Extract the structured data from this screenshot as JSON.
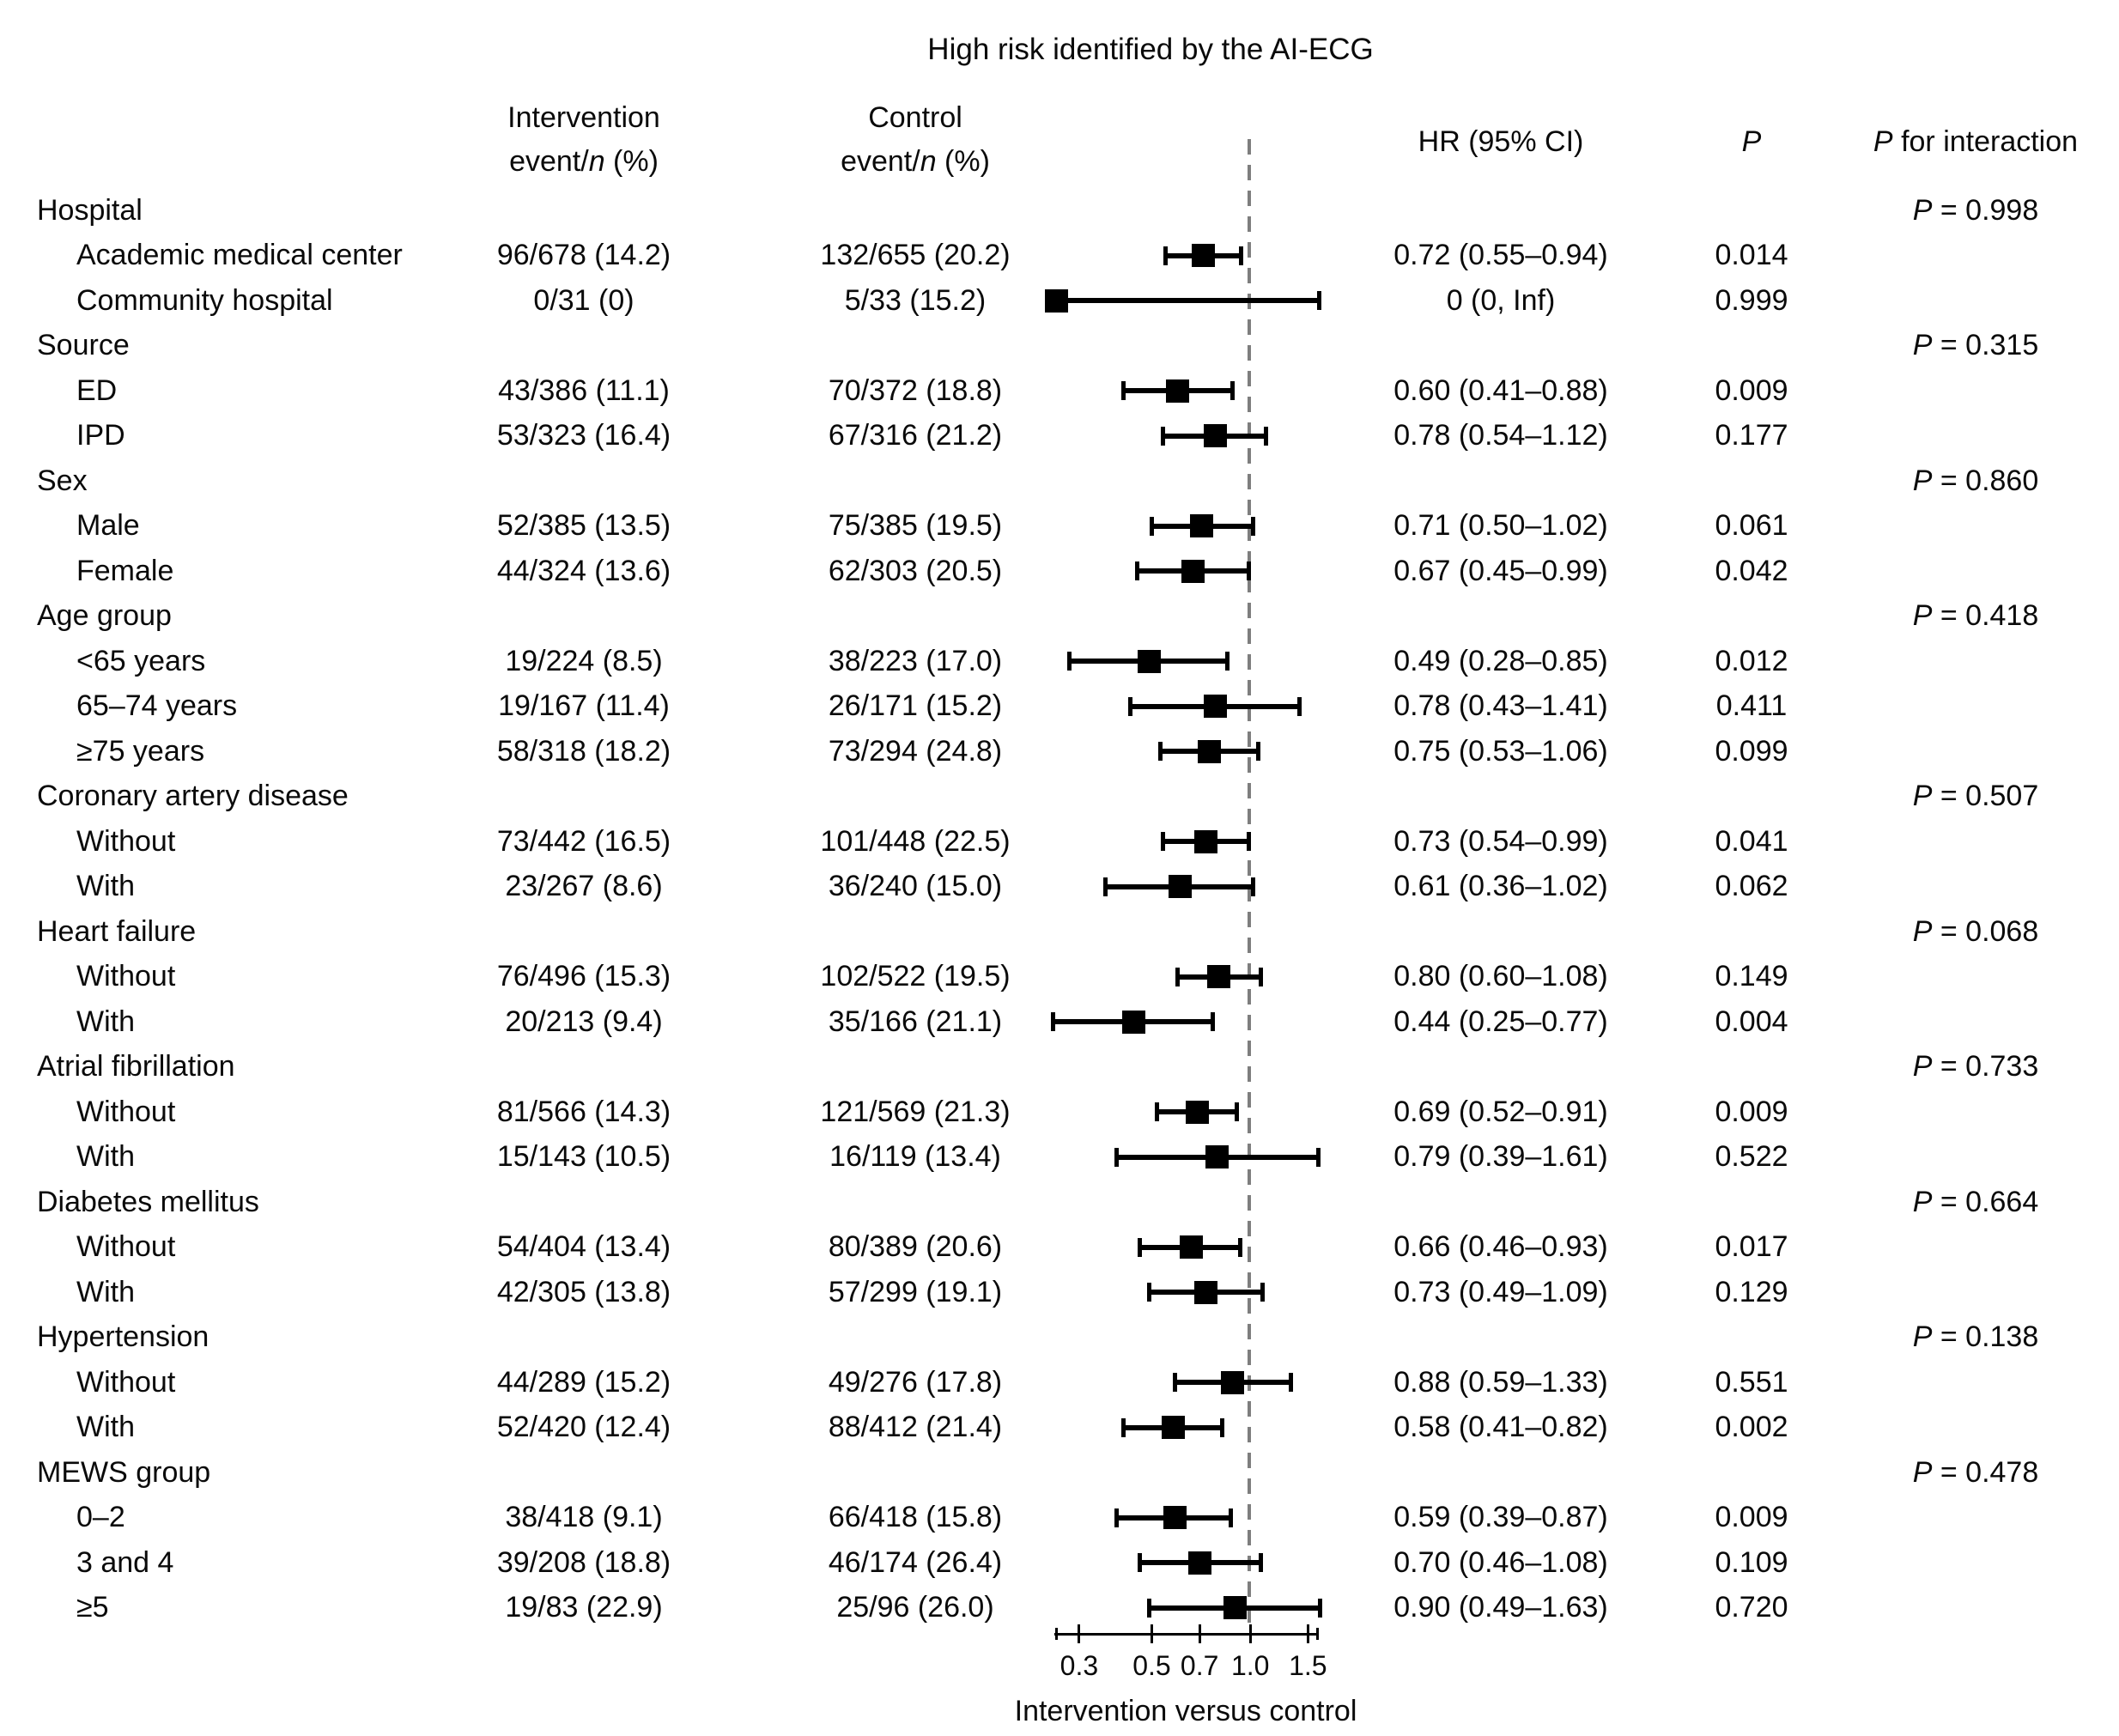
{
  "title": "High risk identified by the AI-ECG",
  "header": {
    "intervention": "Intervention",
    "control": "Control",
    "event_n_pre": "event/",
    "event_n_italic": "n",
    "event_n_post": " (%)",
    "hr": "HR (95% CI)",
    "p": "P",
    "p_interaction_italic": "P",
    "p_interaction_rest": " for interaction"
  },
  "p_prefix": "P",
  "p_equals": " = ",
  "axis": {
    "label": "Intervention versus control",
    "scale": "log",
    "min": 0.255,
    "max": 1.6,
    "reference_line": 1.0,
    "ticks": [
      0.3,
      0.5,
      0.7,
      1.0,
      1.5
    ],
    "tick_labels": [
      "0.3",
      "0.5",
      "0.7",
      "1.0",
      "1.5"
    ]
  },
  "colors": {
    "ink": "#000000",
    "reference_line": "#7e7e7e",
    "background": "#ffffff"
  },
  "chart_data": {
    "type": "scatter",
    "subtype": "forest-plot",
    "title": "High risk identified by the AI-ECG",
    "xlabel": "Intervention versus control",
    "x_scale": "log",
    "x_ticks": [
      0.3,
      0.5,
      0.7,
      1.0,
      1.5
    ],
    "xlim": [
      0.255,
      1.6
    ],
    "reference_x": 1.0,
    "legend": "none",
    "grid": false,
    "groups": [
      {
        "label": "Hospital",
        "p_interaction": "0.998",
        "items": [
          {
            "label": "Academic medical center",
            "intervention": "96/678 (14.2)",
            "control": "132/655 (20.2)",
            "hr_text": "0.72 (0.55–0.94)",
            "hr": 0.72,
            "ci_low": 0.55,
            "ci_high": 0.94,
            "p": "0.014"
          },
          {
            "label": "Community hospital",
            "intervention": "0/31 (0)",
            "control": "5/33 (15.2)",
            "hr_text": "0 (0, Inf)",
            "hr": 0,
            "ci_low": 0,
            "ci_high": null,
            "p": "0.999"
          }
        ]
      },
      {
        "label": "Source",
        "p_interaction": "0.315",
        "items": [
          {
            "label": "ED",
            "intervention": "43/386 (11.1)",
            "control": "70/372 (18.8)",
            "hr_text": "0.60 (0.41–0.88)",
            "hr": 0.6,
            "ci_low": 0.41,
            "ci_high": 0.88,
            "p": "0.009"
          },
          {
            "label": "IPD",
            "intervention": "53/323 (16.4)",
            "control": "67/316 (21.2)",
            "hr_text": "0.78 (0.54–1.12)",
            "hr": 0.78,
            "ci_low": 0.54,
            "ci_high": 1.12,
            "p": "0.177"
          }
        ]
      },
      {
        "label": "Sex",
        "p_interaction": "0.860",
        "items": [
          {
            "label": "Male",
            "intervention": "52/385 (13.5)",
            "control": "75/385 (19.5)",
            "hr_text": "0.71 (0.50–1.02)",
            "hr": 0.71,
            "ci_low": 0.5,
            "ci_high": 1.02,
            "p": "0.061"
          },
          {
            "label": "Female",
            "intervention": "44/324 (13.6)",
            "control": "62/303 (20.5)",
            "hr_text": "0.67 (0.45–0.99)",
            "hr": 0.67,
            "ci_low": 0.45,
            "ci_high": 0.99,
            "p": "0.042"
          }
        ]
      },
      {
        "label": "Age group",
        "p_interaction": "0.418",
        "items": [
          {
            "label": "<65 years",
            "intervention": "19/224 (8.5)",
            "control": "38/223 (17.0)",
            "hr_text": "0.49 (0.28–0.85)",
            "hr": 0.49,
            "ci_low": 0.28,
            "ci_high": 0.85,
            "p": "0.012"
          },
          {
            "label": "65–74 years",
            "intervention": "19/167 (11.4)",
            "control": "26/171 (15.2)",
            "hr_text": "0.78 (0.43–1.41)",
            "hr": 0.78,
            "ci_low": 0.43,
            "ci_high": 1.41,
            "p": "0.411"
          },
          {
            "label": "≥75 years",
            "intervention": "58/318 (18.2)",
            "control": "73/294 (24.8)",
            "hr_text": "0.75 (0.53–1.06)",
            "hr": 0.75,
            "ci_low": 0.53,
            "ci_high": 1.06,
            "p": "0.099"
          }
        ]
      },
      {
        "label": "Coronary artery disease",
        "p_interaction": "0.507",
        "items": [
          {
            "label": "Without",
            "intervention": "73/442 (16.5)",
            "control": "101/448 (22.5)",
            "hr_text": "0.73 (0.54–0.99)",
            "hr": 0.73,
            "ci_low": 0.54,
            "ci_high": 0.99,
            "p": "0.041"
          },
          {
            "label": "With",
            "intervention": "23/267 (8.6)",
            "control": "36/240 (15.0)",
            "hr_text": "0.61 (0.36–1.02)",
            "hr": 0.61,
            "ci_low": 0.36,
            "ci_high": 1.02,
            "p": "0.062"
          }
        ]
      },
      {
        "label": "Heart failure",
        "p_interaction": "0.068",
        "items": [
          {
            "label": "Without",
            "intervention": "76/496 (15.3)",
            "control": "102/522 (19.5)",
            "hr_text": "0.80 (0.60–1.08)",
            "hr": 0.8,
            "ci_low": 0.6,
            "ci_high": 1.08,
            "p": "0.149"
          },
          {
            "label": "With",
            "intervention": "20/213 (9.4)",
            "control": "35/166 (21.1)",
            "hr_text": "0.44 (0.25–0.77)",
            "hr": 0.44,
            "ci_low": 0.25,
            "ci_high": 0.77,
            "p": "0.004"
          }
        ]
      },
      {
        "label": "Atrial fibrillation",
        "p_interaction": "0.733",
        "items": [
          {
            "label": "Without",
            "intervention": "81/566 (14.3)",
            "control": "121/569 (21.3)",
            "hr_text": "0.69 (0.52–0.91)",
            "hr": 0.69,
            "ci_low": 0.52,
            "ci_high": 0.91,
            "p": "0.009"
          },
          {
            "label": "With",
            "intervention": "15/143 (10.5)",
            "control": "16/119 (13.4)",
            "hr_text": "0.79 (0.39–1.61)",
            "hr": 0.79,
            "ci_low": 0.39,
            "ci_high": 1.61,
            "p": "0.522"
          }
        ]
      },
      {
        "label": "Diabetes mellitus",
        "p_interaction": "0.664",
        "items": [
          {
            "label": "Without",
            "intervention": "54/404 (13.4)",
            "control": "80/389 (20.6)",
            "hr_text": "0.66 (0.46–0.93)",
            "hr": 0.66,
            "ci_low": 0.46,
            "ci_high": 0.93,
            "p": "0.017"
          },
          {
            "label": "With",
            "intervention": "42/305 (13.8)",
            "control": "57/299 (19.1)",
            "hr_text": "0.73 (0.49–1.09)",
            "hr": 0.73,
            "ci_low": 0.49,
            "ci_high": 1.09,
            "p": "0.129"
          }
        ]
      },
      {
        "label": "Hypertension",
        "p_interaction": "0.138",
        "items": [
          {
            "label": "Without",
            "intervention": "44/289 (15.2)",
            "control": "49/276 (17.8)",
            "hr_text": "0.88 (0.59–1.33)",
            "hr": 0.88,
            "ci_low": 0.59,
            "ci_high": 1.33,
            "p": "0.551"
          },
          {
            "label": "With",
            "intervention": "52/420 (12.4)",
            "control": "88/412 (21.4)",
            "hr_text": "0.58 (0.41–0.82)",
            "hr": 0.58,
            "ci_low": 0.41,
            "ci_high": 0.82,
            "p": "0.002"
          }
        ]
      },
      {
        "label": "MEWS group",
        "p_interaction": "0.478",
        "items": [
          {
            "label": "0–2",
            "intervention": "38/418 (9.1)",
            "control": "66/418 (15.8)",
            "hr_text": "0.59 (0.39–0.87)",
            "hr": 0.59,
            "ci_low": 0.39,
            "ci_high": 0.87,
            "p": "0.009"
          },
          {
            "label": "3 and 4",
            "intervention": "39/208 (18.8)",
            "control": "46/174 (26.4)",
            "hr_text": "0.70 (0.46–1.08)",
            "hr": 0.7,
            "ci_low": 0.46,
            "ci_high": 1.08,
            "p": "0.109"
          },
          {
            "label": "≥5",
            "intervention": "19/83 (22.9)",
            "control": "25/96 (26.0)",
            "hr_text": "0.90 (0.49–1.63)",
            "hr": 0.9,
            "ci_low": 0.49,
            "ci_high": 1.63,
            "p": "0.720"
          }
        ]
      }
    ]
  }
}
